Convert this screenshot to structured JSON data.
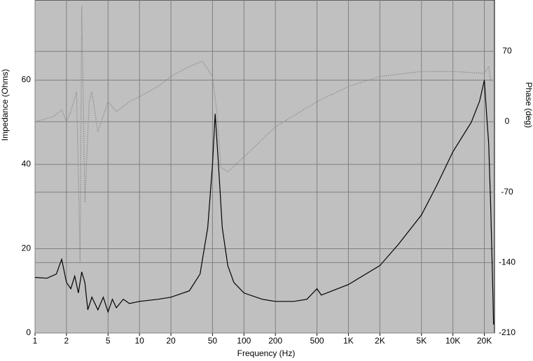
{
  "chart_data": {
    "type": "line",
    "xlabel": "Frequency (Hz)",
    "ylabel": "Impedance (Ohms)",
    "y2label": "Phase (deg)",
    "xscale": "log",
    "grid": true,
    "xlim": [
      1,
      25000
    ],
    "ylim": [
      0,
      79
    ],
    "y2lim": [
      -210,
      121
    ],
    "xticks": [
      1,
      2,
      5,
      10,
      20,
      50,
      100,
      200,
      500,
      {
        "value": 1000,
        "label": "1K"
      },
      {
        "value": 2000,
        "label": "2K"
      },
      {
        "value": 5000,
        "label": "5K"
      },
      {
        "value": 10000,
        "label": "10K"
      },
      {
        "value": 20000,
        "label": "20K"
      }
    ],
    "yticks": [
      0,
      20,
      40,
      60
    ],
    "y2ticks": [
      -210,
      -140,
      -70,
      0,
      70
    ],
    "series": [
      {
        "color": "#000000",
        "axis": "y",
        "x": [
          1,
          1.3,
          1.6,
          1.8,
          2,
          2.2,
          2.4,
          2.6,
          2.8,
          3,
          3.2,
          3.5,
          4,
          4.5,
          5,
          5.5,
          6,
          7,
          8,
          10,
          15,
          20,
          30,
          38,
          45,
          50,
          53,
          57,
          62,
          70,
          80,
          100,
          150,
          200,
          300,
          400,
          500,
          550,
          700,
          1000,
          2000,
          3000,
          5000,
          7000,
          10000,
          15000,
          18000,
          20000,
          21000,
          22000,
          23000,
          24000,
          24500
        ],
        "values": [
          13.2,
          13,
          14,
          17.5,
          12,
          10.5,
          13.5,
          9.5,
          14.5,
          12,
          5.5,
          8.5,
          5.5,
          8.5,
          5,
          8,
          6,
          8,
          7,
          7.5,
          8,
          8.5,
          10,
          14,
          25,
          40,
          52,
          40,
          25,
          16,
          12,
          9.5,
          8,
          7.5,
          7.5,
          8,
          10.5,
          9,
          10,
          11.5,
          16,
          21,
          28,
          35,
          43,
          50,
          55,
          60,
          52,
          45,
          30,
          12,
          2
        ]
      },
      {
        "color": "#8c8c8c",
        "axis": "y2",
        "dashed": true,
        "x": [
          1,
          1.5,
          1.8,
          2,
          2.2,
          2.5,
          2.7,
          2.8,
          3,
          3.3,
          3.5,
          4,
          5,
          6,
          8,
          10,
          15,
          20,
          30,
          40,
          50,
          55,
          60,
          70,
          100,
          200,
          500,
          1000,
          2000,
          5000,
          10000,
          20000,
          22000,
          23000
        ],
        "values": [
          0,
          5,
          12,
          0,
          10,
          30,
          -140,
          115,
          -80,
          20,
          30,
          -10,
          20,
          10,
          20,
          25,
          35,
          45,
          55,
          60,
          45,
          10,
          -45,
          -50,
          -35,
          -5,
          20,
          35,
          45,
          50,
          50,
          48,
          55,
          40
        ]
      }
    ]
  }
}
